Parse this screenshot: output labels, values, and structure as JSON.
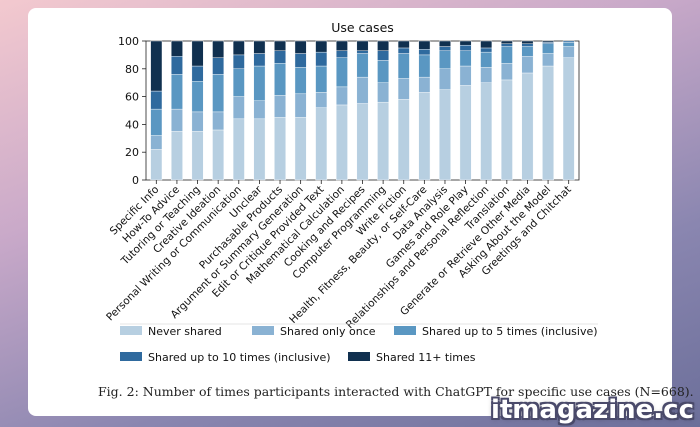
{
  "chart_data": {
    "type": "bar",
    "stacked": true,
    "title": "Use cases",
    "xlabel": "",
    "ylabel": "",
    "ylim": [
      0,
      100
    ],
    "yticks": [
      0,
      20,
      40,
      60,
      80,
      100
    ],
    "legend_position": "bottom",
    "categories": [
      "Specific Info",
      "How-To Advice",
      "Tutoring or Teaching",
      "Creative Ideation",
      "Personal Writing or Communication",
      "Unclear",
      "Purchasable Products",
      "Argument or Summary Generation",
      "Edit or Critique Provided Text",
      "Mathematical Calculation",
      "Cooking and Recipes",
      "Computer Programming",
      "Write Fiction",
      "Health, Fitness, Beauty, or Self-Care",
      "Data Analysis",
      "Games and Role Play",
      "Relationships and Personal Reflection",
      "Translation",
      "Generate or Retrieve Other Media",
      "Asking About the Model",
      "Greetings and Chitchat"
    ],
    "series": [
      {
        "name": "Never shared",
        "color": "#b7cfe1",
        "values": [
          22,
          35,
          35,
          36,
          44,
          44,
          45,
          45,
          52,
          54,
          55,
          56,
          58,
          63,
          65,
          68,
          70,
          72,
          77,
          82,
          88
        ]
      },
      {
        "name": "Shared only once",
        "color": "#8ab2d3",
        "values": [
          10,
          16,
          14,
          13,
          16,
          13,
          16,
          17,
          11,
          13,
          19,
          14,
          15,
          11,
          15,
          14,
          11,
          12,
          12,
          9,
          8
        ]
      },
      {
        "name": "Shared up to 5 times (inclusive)",
        "color": "#5a97c2",
        "values": [
          19,
          25,
          22,
          27,
          20,
          25,
          23,
          19,
          19,
          21,
          17,
          16,
          18,
          16,
          13,
          11,
          11,
          12,
          7,
          7,
          3
        ]
      },
      {
        "name": "Shared up to 10 times (inclusive)",
        "color": "#2f6a9e",
        "values": [
          13,
          13,
          11,
          12,
          10,
          9,
          9,
          10,
          10,
          5,
          2,
          7,
          4,
          4,
          3,
          4,
          3,
          2,
          2,
          1,
          1
        ]
      },
      {
        "name": "Shared 11+ times",
        "color": "#10304f",
        "values": [
          36,
          11,
          18,
          12,
          10,
          9,
          7,
          9,
          8,
          7,
          7,
          7,
          5,
          6,
          4,
          3,
          5,
          2,
          2,
          1,
          0
        ]
      }
    ]
  },
  "caption": "Fig. 2: Number of times participants interacted with ChatGPT for specific use cases (N=668).",
  "watermark": "itmagazine.cc"
}
